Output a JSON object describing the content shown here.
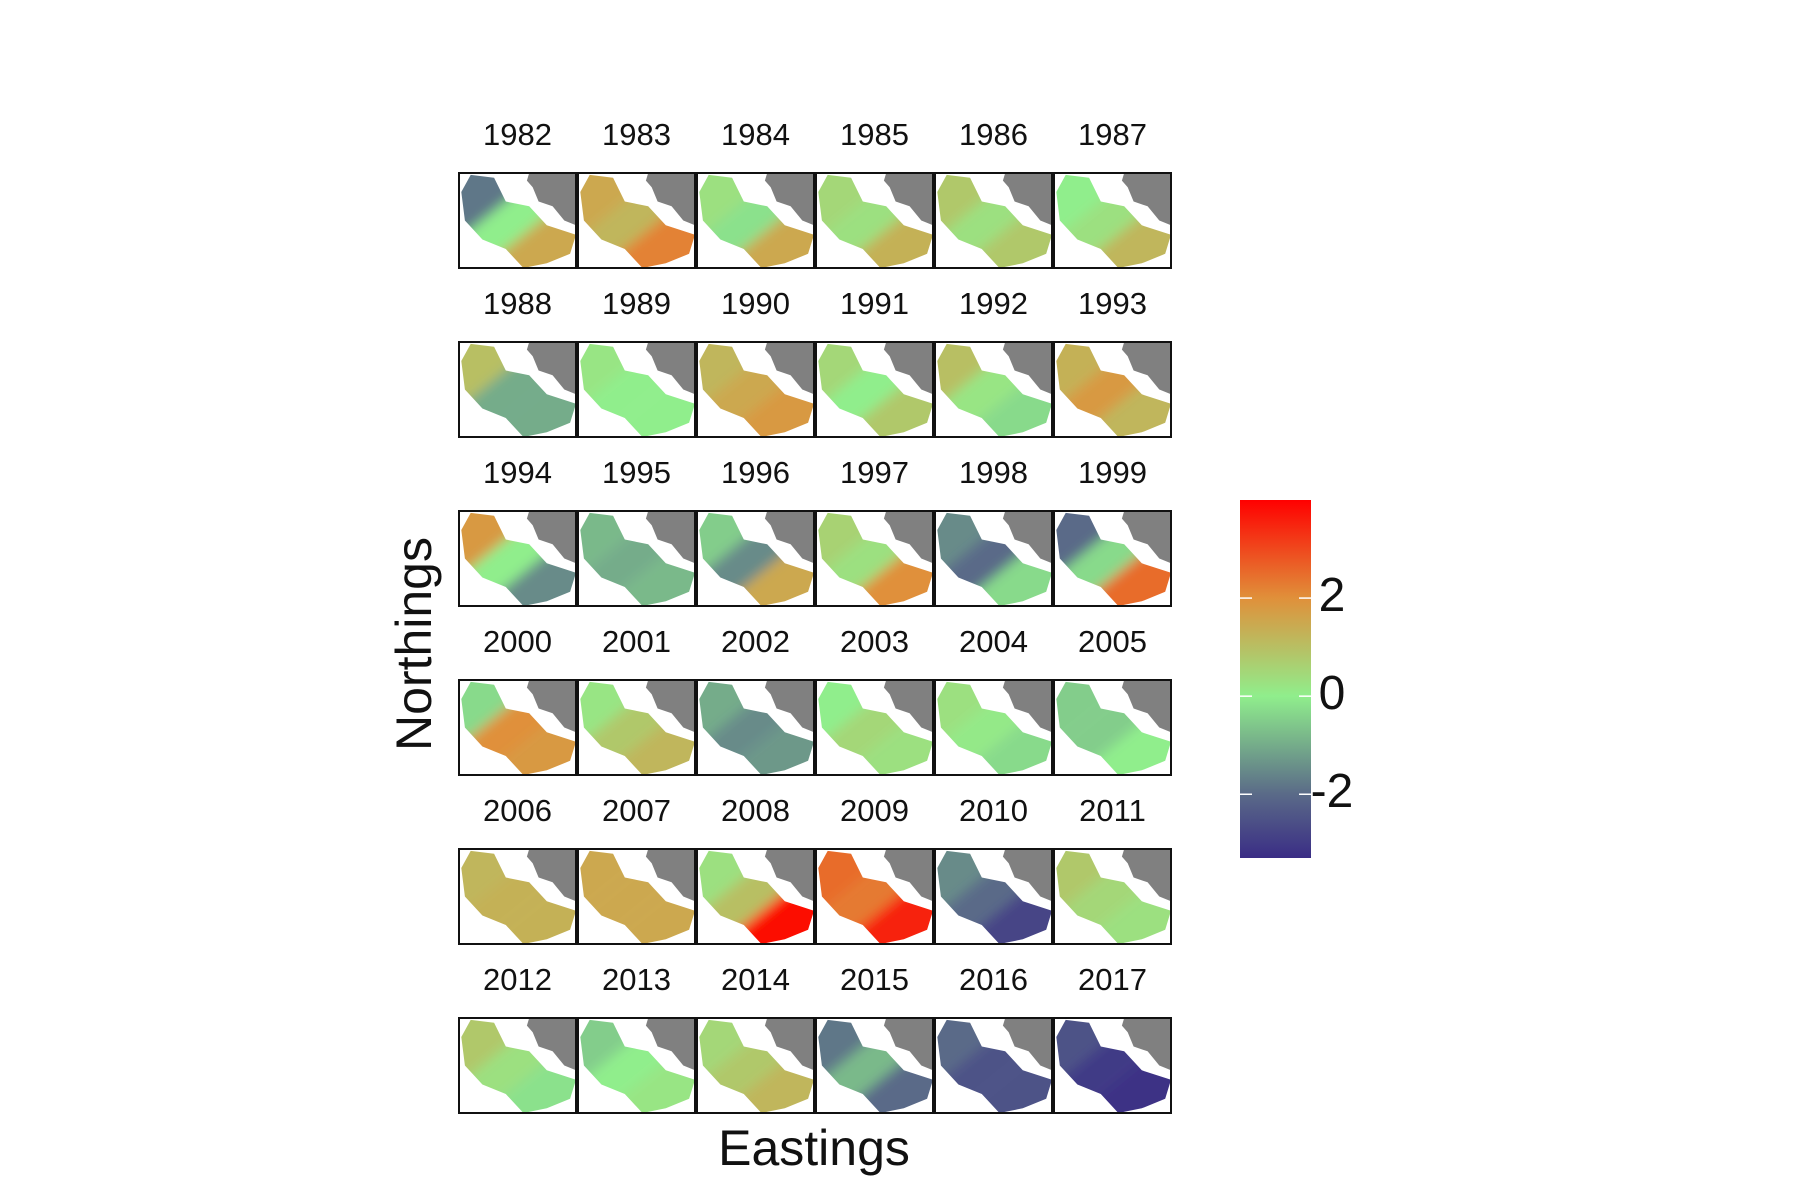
{
  "chart_data": {
    "type": "map",
    "xlabel": "Eastings",
    "ylabel": "Northings",
    "ncol": 6,
    "land_color": "#808080",
    "colorbar": {
      "lim": [
        -3.3,
        4.0
      ],
      "ticks": [
        -2,
        0,
        2
      ],
      "stops": [
        {
          "value": -3.3,
          "color": "#3a2d85"
        },
        {
          "value": -2,
          "color": "#5a6a88"
        },
        {
          "value": 0,
          "color": "#90ee8c"
        },
        {
          "value": 2,
          "color": "#e0903a"
        },
        {
          "value": 4.0,
          "color": "#ff0000"
        }
      ]
    },
    "panels": [
      {
        "title": "1982",
        "values": [
          -1.8,
          0,
          1.5
        ]
      },
      {
        "title": "1983",
        "values": [
          1.5,
          1.2,
          2.2
        ]
      },
      {
        "title": "1984",
        "values": [
          0.3,
          -0.2,
          1.5
        ]
      },
      {
        "title": "1985",
        "values": [
          0.5,
          0.3,
          1.3
        ]
      },
      {
        "title": "1986",
        "values": [
          0.8,
          0.3,
          0.8
        ]
      },
      {
        "title": "1987",
        "values": [
          0,
          0.3,
          1.2
        ]
      },
      {
        "title": "1988",
        "values": [
          1.0,
          -1.0,
          -1.0
        ]
      },
      {
        "title": "1989",
        "values": [
          0.2,
          0,
          0
        ]
      },
      {
        "title": "1990",
        "values": [
          1.2,
          1.5,
          1.8
        ]
      },
      {
        "title": "1991",
        "values": [
          0.5,
          0,
          0.8
        ]
      },
      {
        "title": "1992",
        "values": [
          1.0,
          0.2,
          -0.3
        ]
      },
      {
        "title": "1993",
        "values": [
          1.3,
          1.8,
          1.2
        ]
      },
      {
        "title": "1994",
        "values": [
          1.8,
          0,
          -1.5
        ]
      },
      {
        "title": "1995",
        "values": [
          -0.8,
          -1.0,
          -0.8
        ]
      },
      {
        "title": "1996",
        "values": [
          -0.5,
          -1.5,
          1.5
        ]
      },
      {
        "title": "1997",
        "values": [
          0.6,
          0.3,
          2.0
        ]
      },
      {
        "title": "1998",
        "values": [
          -1.5,
          -2.0,
          -0.3
        ]
      },
      {
        "title": "1999",
        "values": [
          -2.0,
          -0.3,
          2.5
        ]
      },
      {
        "title": "2000",
        "values": [
          -0.3,
          2.0,
          1.8
        ]
      },
      {
        "title": "2001",
        "values": [
          0.2,
          0.8,
          1.2
        ]
      },
      {
        "title": "2002",
        "values": [
          -1.0,
          -1.5,
          -1.3
        ]
      },
      {
        "title": "2003",
        "values": [
          0,
          0.5,
          0.3
        ]
      },
      {
        "title": "2004",
        "values": [
          0.3,
          0.1,
          -0.3
        ]
      },
      {
        "title": "2005",
        "values": [
          -0.5,
          -0.5,
          0
        ]
      },
      {
        "title": "2006",
        "values": [
          1.2,
          1.3,
          1.3
        ]
      },
      {
        "title": "2007",
        "values": [
          1.5,
          1.5,
          1.5
        ]
      },
      {
        "title": "2008",
        "values": [
          0.3,
          1.0,
          3.8
        ]
      },
      {
        "title": "2009",
        "values": [
          2.5,
          2.3,
          3.5
        ]
      },
      {
        "title": "2010",
        "values": [
          -1.5,
          -2.0,
          -2.8
        ]
      },
      {
        "title": "2011",
        "values": [
          0.8,
          0.5,
          0.3
        ]
      },
      {
        "title": "2012",
        "values": [
          0.8,
          0.3,
          -0.2
        ]
      },
      {
        "title": "2013",
        "values": [
          -0.5,
          0,
          0.2
        ]
      },
      {
        "title": "2014",
        "values": [
          0.5,
          0.8,
          1.2
        ]
      },
      {
        "title": "2015",
        "values": [
          -1.8,
          -0.8,
          -2.0
        ]
      },
      {
        "title": "2016",
        "values": [
          -2.0,
          -2.5,
          -2.5
        ]
      },
      {
        "title": "2017",
        "values": [
          -2.5,
          -3.0,
          -3.2
        ]
      }
    ]
  }
}
